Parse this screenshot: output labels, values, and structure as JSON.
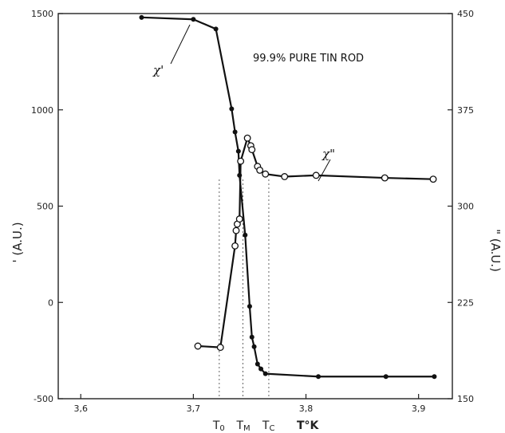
{
  "chart_data": {
    "type": "line",
    "annotation": "99.9% PURE TIN ROD",
    "xlabel": "T°K",
    "ylabel_left": "' (A.U.)",
    "ylabel_right": "\" (A.U.)",
    "xlim": [
      3.58,
      3.93
    ],
    "ylim_left": [
      -500,
      1500
    ],
    "ylim_right": [
      150,
      450
    ],
    "x_ticks": [
      3.6,
      3.7,
      3.8,
      3.9
    ],
    "y_ticks_left": [
      1500,
      1000,
      500,
      0,
      -500
    ],
    "y_ticks_right": [
      450,
      375,
      300,
      225,
      150
    ],
    "grid": false,
    "markers": [
      {
        "label": "T",
        "sub": "0",
        "x": 3.723
      },
      {
        "label": "T",
        "sub": "M",
        "x": 3.744
      },
      {
        "label": "T",
        "sub": "C",
        "x": 3.767
      }
    ],
    "series": [
      {
        "name": "χ'",
        "axis": "left",
        "marker": "filled",
        "points": [
          [
            3.654,
            1480
          ],
          [
            3.7,
            1470
          ],
          [
            3.72,
            1420
          ],
          [
            3.734,
            1005
          ],
          [
            3.737,
            885
          ],
          [
            3.74,
            785
          ],
          [
            3.741,
            660
          ],
          [
            3.746,
            350
          ],
          [
            3.75,
            -20
          ],
          [
            3.752,
            -180
          ],
          [
            3.754,
            -230
          ],
          [
            3.757,
            -320
          ],
          [
            3.76,
            -345
          ],
          [
            3.764,
            -370
          ],
          [
            3.811,
            -385
          ],
          [
            3.871,
            -385
          ],
          [
            3.914,
            -385
          ]
        ]
      },
      {
        "name": "χ\"",
        "axis": "right",
        "marker": "open",
        "points": [
          [
            3.704,
            191
          ],
          [
            3.724,
            190
          ],
          [
            3.737,
            269
          ],
          [
            3.738,
            281
          ],
          [
            3.739,
            286
          ],
          [
            3.741,
            290
          ],
          [
            3.742,
            335
          ],
          [
            3.748,
            353
          ],
          [
            3.751,
            347
          ],
          [
            3.752,
            344
          ],
          [
            3.757,
            331
          ],
          [
            3.759,
            328
          ],
          [
            3.764,
            325
          ],
          [
            3.781,
            323
          ],
          [
            3.809,
            324
          ],
          [
            3.87,
            322
          ],
          [
            3.913,
            321
          ]
        ]
      }
    ]
  }
}
